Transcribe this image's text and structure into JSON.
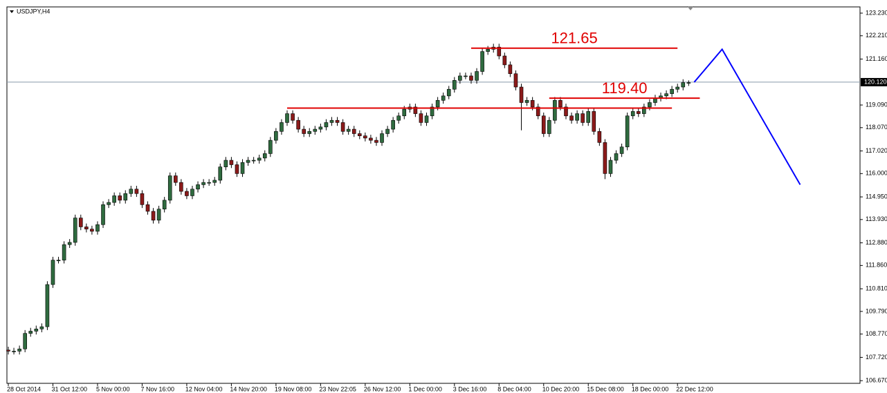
{
  "chart_data": {
    "type": "candlestick",
    "title": "USDJPY,H4",
    "categories": [
      "28 Oct 2014",
      null,
      null,
      null,
      null,
      null,
      null,
      null,
      "31 Oct 12:00",
      null,
      null,
      null,
      null,
      null,
      null,
      null,
      "5 Nov 00:00",
      null,
      null,
      null,
      null,
      null,
      null,
      null,
      "7 Nov 16:00",
      null,
      null,
      null,
      null,
      null,
      null,
      null,
      "12 Nov 04:00",
      null,
      null,
      null,
      null,
      null,
      null,
      null,
      "14 Nov 20:00",
      null,
      null,
      null,
      null,
      null,
      null,
      null,
      "19 Nov 08:00",
      null,
      null,
      null,
      null,
      null,
      null,
      null,
      "23 Nov 22:05",
      null,
      null,
      null,
      null,
      null,
      null,
      null,
      "26 Nov 12:00",
      null,
      null,
      null,
      null,
      null,
      null,
      null,
      "1 Dec 00:00",
      null,
      null,
      null,
      null,
      null,
      null,
      null,
      "3 Dec 16:00",
      null,
      null,
      null,
      null,
      null,
      null,
      null,
      "8 Dec 04:00",
      null,
      null,
      null,
      null,
      null,
      null,
      null,
      "10 Dec 20:00",
      null,
      null,
      null,
      null,
      null,
      null,
      null,
      "15 Dec 08:00",
      null,
      null,
      null,
      null,
      null,
      null,
      null,
      "18 Dec 00:00",
      null,
      null,
      null,
      null,
      null,
      null,
      null,
      "22 Dec 12:00",
      null,
      null
    ],
    "ohlc": [
      [
        108.05,
        108.2,
        107.85,
        108.0
      ],
      [
        108.0,
        108.15,
        107.85,
        108.0
      ],
      [
        108.0,
        108.25,
        107.85,
        108.1
      ],
      [
        108.1,
        108.95,
        107.95,
        108.8
      ],
      [
        108.8,
        109.05,
        108.65,
        108.9
      ],
      [
        108.9,
        109.15,
        108.75,
        109.0
      ],
      [
        109.0,
        109.25,
        108.85,
        109.1
      ],
      [
        109.1,
        111.15,
        108.95,
        111.0
      ],
      [
        111.0,
        112.25,
        110.85,
        112.1
      ],
      [
        112.1,
        112.25,
        111.95,
        112.1
      ],
      [
        112.1,
        112.95,
        111.95,
        112.8
      ],
      [
        112.8,
        113.05,
        112.65,
        112.9
      ],
      [
        112.9,
        114.15,
        112.75,
        114.0
      ],
      [
        114.0,
        114.15,
        113.45,
        113.6
      ],
      [
        113.6,
        113.75,
        113.35,
        113.5
      ],
      [
        113.5,
        113.65,
        113.25,
        113.4
      ],
      [
        113.4,
        113.85,
        113.25,
        113.7
      ],
      [
        113.7,
        114.75,
        113.55,
        114.6
      ],
      [
        114.6,
        114.85,
        114.45,
        114.7
      ],
      [
        114.7,
        115.15,
        114.55,
        115.0
      ],
      [
        115.0,
        115.15,
        114.65,
        114.8
      ],
      [
        114.8,
        115.25,
        114.65,
        115.1
      ],
      [
        115.1,
        115.45,
        114.95,
        115.3
      ],
      [
        115.3,
        115.45,
        114.95,
        115.1
      ],
      [
        115.1,
        115.25,
        114.45,
        114.6
      ],
      [
        114.6,
        114.75,
        114.15,
        114.3
      ],
      [
        114.3,
        114.45,
        113.75,
        113.9
      ],
      [
        113.9,
        114.55,
        113.75,
        114.4
      ],
      [
        114.4,
        114.95,
        114.25,
        114.8
      ],
      [
        114.8,
        116.05,
        114.65,
        115.9
      ],
      [
        115.9,
        116.05,
        115.45,
        115.6
      ],
      [
        115.6,
        115.75,
        115.05,
        115.2
      ],
      [
        115.2,
        115.35,
        114.85,
        115.0
      ],
      [
        115.0,
        115.45,
        114.85,
        115.3
      ],
      [
        115.3,
        115.65,
        115.15,
        115.5
      ],
      [
        115.5,
        115.75,
        115.35,
        115.6
      ],
      [
        115.6,
        115.75,
        115.45,
        115.6
      ],
      [
        115.6,
        115.85,
        115.45,
        115.7
      ],
      [
        115.7,
        116.45,
        115.55,
        116.3
      ],
      [
        116.3,
        116.75,
        116.15,
        116.6
      ],
      [
        116.6,
        116.75,
        116.25,
        116.4
      ],
      [
        116.4,
        116.55,
        115.85,
        116.0
      ],
      [
        116.0,
        116.65,
        115.85,
        116.5
      ],
      [
        116.5,
        116.75,
        116.35,
        116.6
      ],
      [
        116.6,
        116.75,
        116.45,
        116.6
      ],
      [
        116.6,
        116.85,
        116.45,
        116.7
      ],
      [
        116.7,
        117.05,
        116.55,
        116.9
      ],
      [
        116.9,
        117.65,
        116.75,
        117.5
      ],
      [
        117.5,
        118.05,
        117.35,
        117.9
      ],
      [
        117.9,
        118.45,
        117.75,
        118.3
      ],
      [
        118.3,
        118.85,
        118.15,
        118.7
      ],
      [
        118.7,
        118.85,
        118.25,
        118.4
      ],
      [
        118.4,
        118.55,
        117.85,
        118.0
      ],
      [
        118.0,
        118.15,
        117.65,
        117.8
      ],
      [
        117.8,
        118.05,
        117.65,
        117.9
      ],
      [
        117.9,
        118.15,
        117.75,
        118.0
      ],
      [
        118.0,
        118.25,
        117.85,
        118.1
      ],
      [
        118.1,
        118.45,
        117.95,
        118.3
      ],
      [
        118.3,
        118.55,
        118.15,
        118.4
      ],
      [
        118.4,
        118.55,
        118.15,
        118.3
      ],
      [
        118.3,
        118.45,
        117.75,
        117.9
      ],
      [
        117.9,
        118.15,
        117.75,
        118.0
      ],
      [
        118.0,
        118.15,
        117.65,
        117.8
      ],
      [
        117.8,
        117.95,
        117.55,
        117.7
      ],
      [
        117.7,
        117.85,
        117.45,
        117.6
      ],
      [
        117.6,
        117.75,
        117.35,
        117.5
      ],
      [
        117.5,
        117.65,
        117.25,
        117.4
      ],
      [
        117.4,
        117.95,
        117.25,
        117.8
      ],
      [
        117.8,
        118.15,
        117.65,
        118.0
      ],
      [
        118.0,
        118.55,
        117.85,
        118.4
      ],
      [
        118.4,
        118.75,
        118.25,
        118.6
      ],
      [
        118.6,
        119.05,
        118.45,
        118.9
      ],
      [
        118.9,
        119.15,
        118.75,
        119.0
      ],
      [
        119.0,
        119.15,
        118.55,
        118.7
      ],
      [
        118.7,
        118.85,
        118.15,
        118.3
      ],
      [
        118.3,
        118.75,
        118.15,
        118.6
      ],
      [
        118.6,
        119.15,
        118.45,
        119.0
      ],
      [
        119.0,
        119.45,
        118.85,
        119.3
      ],
      [
        119.3,
        119.65,
        119.15,
        119.5
      ],
      [
        119.5,
        119.95,
        119.35,
        119.8
      ],
      [
        119.8,
        120.35,
        119.65,
        120.2
      ],
      [
        120.2,
        120.55,
        120.05,
        120.4
      ],
      [
        120.4,
        120.55,
        120.25,
        120.4
      ],
      [
        120.4,
        120.55,
        120.05,
        120.2
      ],
      [
        120.2,
        120.75,
        120.05,
        120.6
      ],
      [
        120.6,
        121.65,
        120.45,
        121.5
      ],
      [
        121.5,
        121.75,
        121.35,
        121.6
      ],
      [
        121.6,
        121.85,
        121.45,
        121.7
      ],
      [
        121.7,
        121.85,
        121.15,
        121.3
      ],
      [
        121.3,
        121.45,
        120.75,
        120.9
      ],
      [
        120.9,
        121.05,
        120.35,
        120.5
      ],
      [
        120.5,
        120.65,
        119.75,
        119.9
      ],
      [
        119.9,
        120.05,
        117.95,
        119.2
      ],
      [
        119.2,
        119.45,
        119.05,
        119.3
      ],
      [
        119.3,
        119.45,
        118.85,
        119.0
      ],
      [
        119.0,
        119.15,
        118.45,
        118.6
      ],
      [
        118.6,
        118.75,
        117.65,
        117.8
      ],
      [
        117.8,
        118.55,
        117.65,
        118.4
      ],
      [
        118.4,
        119.45,
        118.25,
        119.3
      ],
      [
        119.3,
        119.45,
        118.85,
        119.0
      ],
      [
        119.0,
        119.15,
        118.45,
        118.6
      ],
      [
        118.6,
        118.75,
        118.25,
        118.4
      ],
      [
        118.4,
        118.85,
        118.25,
        118.7
      ],
      [
        118.7,
        118.85,
        118.15,
        118.3
      ],
      [
        118.3,
        118.95,
        118.15,
        118.8
      ],
      [
        118.8,
        118.95,
        117.75,
        117.9
      ],
      [
        117.9,
        118.05,
        117.25,
        117.4
      ],
      [
        117.4,
        117.55,
        115.75,
        116.0
      ],
      [
        116.0,
        116.75,
        115.85,
        116.6
      ],
      [
        116.6,
        117.05,
        116.45,
        116.9
      ],
      [
        116.9,
        117.35,
        116.75,
        117.2
      ],
      [
        117.2,
        118.75,
        117.05,
        118.6
      ],
      [
        118.6,
        118.95,
        118.45,
        118.8
      ],
      [
        118.8,
        118.95,
        118.55,
        118.7
      ],
      [
        118.7,
        119.15,
        118.55,
        119.0
      ],
      [
        119.0,
        119.35,
        118.85,
        119.2
      ],
      [
        119.2,
        119.55,
        119.05,
        119.4
      ],
      [
        119.4,
        119.65,
        119.25,
        119.5
      ],
      [
        119.5,
        119.75,
        119.35,
        119.6
      ],
      [
        119.6,
        119.95,
        119.45,
        119.8
      ],
      [
        119.8,
        120.05,
        119.65,
        119.9
      ],
      [
        119.9,
        120.25,
        119.75,
        120.1
      ],
      [
        120.1,
        120.2,
        119.95,
        120.1
      ]
    ],
    "bull_color": "#2f6b3f",
    "bear_color": "#8b1a1a",
    "wick_color": "#000000",
    "ylim": [
      106.55,
      123.51
    ],
    "yticks": [
      {
        "value": 123.23,
        "label": "123.230"
      },
      {
        "value": 122.21,
        "label": "122.210"
      },
      {
        "value": 121.16,
        "label": "121.160"
      },
      {
        "value": 119.09,
        "label": "119.090"
      },
      {
        "value": 118.07,
        "label": "118.070"
      },
      {
        "value": 117.02,
        "label": "117.020"
      },
      {
        "value": 116.0,
        "label": "116.000"
      },
      {
        "value": 114.95,
        "label": "114.950"
      },
      {
        "value": 113.93,
        "label": "113.930"
      },
      {
        "value": 112.88,
        "label": "112.880"
      },
      {
        "value": 111.86,
        "label": "111.860"
      },
      {
        "value": 110.81,
        "label": "110.810"
      },
      {
        "value": 109.79,
        "label": "109.790"
      },
      {
        "value": 108.77,
        "label": "108.770"
      },
      {
        "value": 107.72,
        "label": "107.720"
      },
      {
        "value": 106.67,
        "label": "106.670"
      }
    ],
    "current_price": {
      "value": 120.12,
      "label": "120.120"
    },
    "levels": [
      {
        "value": 121.65,
        "label": "121.65",
        "from": 83,
        "to": 120
      },
      {
        "value": 119.4,
        "label": "119.40",
        "from": 97,
        "to": 124
      },
      {
        "value": 118.95,
        "from": 50,
        "to": 119
      }
    ],
    "level_color": "#e00000",
    "projection": {
      "color": "#0000ff",
      "x": [
        123,
        128,
        142
      ],
      "values": [
        120.12,
        121.6,
        115.5
      ]
    }
  }
}
